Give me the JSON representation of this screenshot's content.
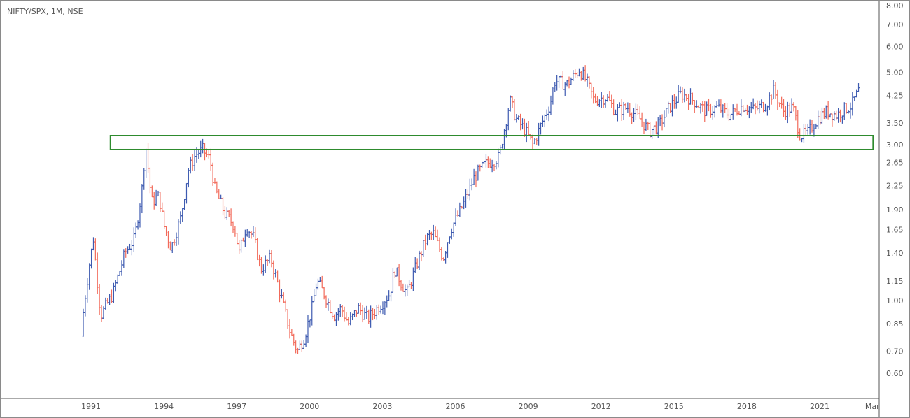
{
  "header": {
    "title": "NIFTY/SPX, 1M, NSE"
  },
  "chart_data": {
    "type": "ohlc",
    "title": "NIFTY/SPX, 1M, NSE",
    "scale": "log",
    "ylim": [
      0.55,
      8.2
    ],
    "xlim": [
      1990.2,
      2023.6
    ],
    "y_ticks": [
      "8.00",
      "7.00",
      "6.00",
      "5.00",
      "4.25",
      "3.50",
      "3.00",
      "2.65",
      "2.25",
      "1.90",
      "1.65",
      "1.40",
      "1.15",
      "1.00",
      "0.85",
      "0.70",
      "0.60"
    ],
    "x_ticks": [
      {
        "label": "1991",
        "value": 1991
      },
      {
        "label": "1994",
        "value": 1994
      },
      {
        "label": "1997",
        "value": 1997
      },
      {
        "label": "2000",
        "value": 2000
      },
      {
        "label": "2003",
        "value": 2003
      },
      {
        "label": "2006",
        "value": 2006
      },
      {
        "label": "2009",
        "value": 2009
      },
      {
        "label": "2012",
        "value": 2012
      },
      {
        "label": "2015",
        "value": 2015
      },
      {
        "label": "2018",
        "value": 2018
      },
      {
        "label": "2021",
        "value": 2021
      },
      {
        "label": "Mar",
        "value": 2023.17
      }
    ],
    "approx_close_path": [
      [
        1990.6,
        0.78
      ],
      [
        1990.7,
        0.95
      ],
      [
        1990.9,
        1.25
      ],
      [
        1991.1,
        1.55
      ],
      [
        1991.4,
        0.9
      ],
      [
        1991.9,
        1.05
      ],
      [
        1992.4,
        1.4
      ],
      [
        1992.8,
        1.55
      ],
      [
        1993.1,
        2.2
      ],
      [
        1993.25,
        3.0
      ],
      [
        1993.5,
        2.0
      ],
      [
        1993.8,
        2.1
      ],
      [
        1994.0,
        1.7
      ],
      [
        1994.3,
        1.45
      ],
      [
        1994.7,
        1.8
      ],
      [
        1995.0,
        2.5
      ],
      [
        1995.3,
        2.8
      ],
      [
        1995.6,
        2.9
      ],
      [
        1995.9,
        2.7
      ],
      [
        1996.1,
        2.2
      ],
      [
        1996.5,
        1.85
      ],
      [
        1996.9,
        1.7
      ],
      [
        1997.1,
        1.4
      ],
      [
        1997.4,
        1.7
      ],
      [
        1997.7,
        1.55
      ],
      [
        1998.0,
        1.25
      ],
      [
        1998.4,
        1.35
      ],
      [
        1998.8,
        1.05
      ],
      [
        1999.2,
        0.8
      ],
      [
        1999.5,
        0.7
      ],
      [
        1999.8,
        0.78
      ],
      [
        2000.1,
        0.95
      ],
      [
        2000.3,
        1.15
      ],
      [
        2000.6,
        1.05
      ],
      [
        2001.0,
        0.9
      ],
      [
        2001.3,
        0.95
      ],
      [
        2001.6,
        0.85
      ],
      [
        2002.0,
        0.95
      ],
      [
        2002.4,
        0.88
      ],
      [
        2002.8,
        0.95
      ],
      [
        2003.3,
        1.05
      ],
      [
        2003.5,
        1.25
      ],
      [
        2004.0,
        1.05
      ],
      [
        2004.5,
        1.35
      ],
      [
        2004.8,
        1.55
      ],
      [
        2005.1,
        1.6
      ],
      [
        2005.5,
        1.35
      ],
      [
        2005.8,
        1.65
      ],
      [
        2006.3,
        1.95
      ],
      [
        2006.8,
        2.4
      ],
      [
        2007.2,
        2.6
      ],
      [
        2007.8,
        2.75
      ],
      [
        2008.0,
        3.3
      ],
      [
        2008.25,
        4.1
      ],
      [
        2008.5,
        3.6
      ],
      [
        2008.9,
        3.3
      ],
      [
        2009.2,
        3.0
      ],
      [
        2009.5,
        3.4
      ],
      [
        2009.9,
        4.0
      ],
      [
        2010.1,
        4.7
      ],
      [
        2010.6,
        4.6
      ],
      [
        2011.1,
        5.1
      ],
      [
        2011.4,
        4.7
      ],
      [
        2011.7,
        4.1
      ],
      [
        2012.2,
        4.2
      ],
      [
        2012.6,
        3.8
      ],
      [
        2013.1,
        3.9
      ],
      [
        2013.6,
        3.6
      ],
      [
        2014.0,
        3.3
      ],
      [
        2014.4,
        3.45
      ],
      [
        2014.8,
        3.9
      ],
      [
        2015.3,
        4.3
      ],
      [
        2015.8,
        4.1
      ],
      [
        2016.3,
        3.8
      ],
      [
        2016.8,
        3.9
      ],
      [
        2017.3,
        3.7
      ],
      [
        2017.8,
        3.95
      ],
      [
        2018.3,
        3.85
      ],
      [
        2018.8,
        4.0
      ],
      [
        2019.1,
        4.4
      ],
      [
        2019.5,
        3.8
      ],
      [
        2019.9,
        3.9
      ],
      [
        2020.2,
        3.2
      ],
      [
        2020.5,
        3.25
      ],
      [
        2020.9,
        3.6
      ],
      [
        2021.3,
        3.8
      ],
      [
        2021.7,
        3.7
      ],
      [
        2022.0,
        3.85
      ],
      [
        2022.3,
        3.95
      ],
      [
        2022.65,
        4.45
      ]
    ],
    "annotations": [
      {
        "type": "rectangle",
        "x": [
          1991.8,
          2023.2
        ],
        "y": [
          2.9,
          3.2
        ],
        "color": "#2e8b2e"
      }
    ],
    "colors": {
      "up": "#3d5ab0",
      "down": "#f26b5b",
      "box": "#2e8b2e",
      "axis": "#555555"
    }
  }
}
